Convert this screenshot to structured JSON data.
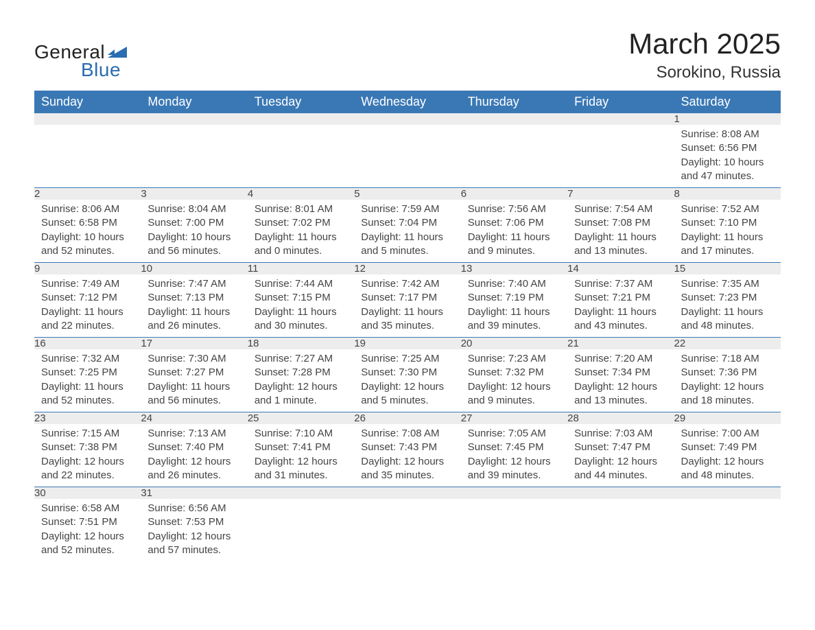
{
  "logo": {
    "text_general": "General",
    "text_blue": "Blue",
    "shape_color": "#2a6db0"
  },
  "header": {
    "month_title": "March 2025",
    "location": "Sorokino, Russia"
  },
  "style": {
    "header_bg": "#3a78b5",
    "header_text_color": "#ffffff",
    "daynum_bg": "#ededed",
    "body_text_color": "#444444",
    "row_border_color": "#3a78b5",
    "page_bg": "#ffffff",
    "month_title_fontsize": 42,
    "location_fontsize": 24,
    "weekday_fontsize": 18,
    "body_fontsize": 15
  },
  "weekdays": [
    "Sunday",
    "Monday",
    "Tuesday",
    "Wednesday",
    "Thursday",
    "Friday",
    "Saturday"
  ],
  "weeks": [
    [
      null,
      null,
      null,
      null,
      null,
      null,
      {
        "day": "1",
        "sunrise": "Sunrise: 8:08 AM",
        "sunset": "Sunset: 6:56 PM",
        "daylight": "Daylight: 10 hours and 47 minutes."
      }
    ],
    [
      {
        "day": "2",
        "sunrise": "Sunrise: 8:06 AM",
        "sunset": "Sunset: 6:58 PM",
        "daylight": "Daylight: 10 hours and 52 minutes."
      },
      {
        "day": "3",
        "sunrise": "Sunrise: 8:04 AM",
        "sunset": "Sunset: 7:00 PM",
        "daylight": "Daylight: 10 hours and 56 minutes."
      },
      {
        "day": "4",
        "sunrise": "Sunrise: 8:01 AM",
        "sunset": "Sunset: 7:02 PM",
        "daylight": "Daylight: 11 hours and 0 minutes."
      },
      {
        "day": "5",
        "sunrise": "Sunrise: 7:59 AM",
        "sunset": "Sunset: 7:04 PM",
        "daylight": "Daylight: 11 hours and 5 minutes."
      },
      {
        "day": "6",
        "sunrise": "Sunrise: 7:56 AM",
        "sunset": "Sunset: 7:06 PM",
        "daylight": "Daylight: 11 hours and 9 minutes."
      },
      {
        "day": "7",
        "sunrise": "Sunrise: 7:54 AM",
        "sunset": "Sunset: 7:08 PM",
        "daylight": "Daylight: 11 hours and 13 minutes."
      },
      {
        "day": "8",
        "sunrise": "Sunrise: 7:52 AM",
        "sunset": "Sunset: 7:10 PM",
        "daylight": "Daylight: 11 hours and 17 minutes."
      }
    ],
    [
      {
        "day": "9",
        "sunrise": "Sunrise: 7:49 AM",
        "sunset": "Sunset: 7:12 PM",
        "daylight": "Daylight: 11 hours and 22 minutes."
      },
      {
        "day": "10",
        "sunrise": "Sunrise: 7:47 AM",
        "sunset": "Sunset: 7:13 PM",
        "daylight": "Daylight: 11 hours and 26 minutes."
      },
      {
        "day": "11",
        "sunrise": "Sunrise: 7:44 AM",
        "sunset": "Sunset: 7:15 PM",
        "daylight": "Daylight: 11 hours and 30 minutes."
      },
      {
        "day": "12",
        "sunrise": "Sunrise: 7:42 AM",
        "sunset": "Sunset: 7:17 PM",
        "daylight": "Daylight: 11 hours and 35 minutes."
      },
      {
        "day": "13",
        "sunrise": "Sunrise: 7:40 AM",
        "sunset": "Sunset: 7:19 PM",
        "daylight": "Daylight: 11 hours and 39 minutes."
      },
      {
        "day": "14",
        "sunrise": "Sunrise: 7:37 AM",
        "sunset": "Sunset: 7:21 PM",
        "daylight": "Daylight: 11 hours and 43 minutes."
      },
      {
        "day": "15",
        "sunrise": "Sunrise: 7:35 AM",
        "sunset": "Sunset: 7:23 PM",
        "daylight": "Daylight: 11 hours and 48 minutes."
      }
    ],
    [
      {
        "day": "16",
        "sunrise": "Sunrise: 7:32 AM",
        "sunset": "Sunset: 7:25 PM",
        "daylight": "Daylight: 11 hours and 52 minutes."
      },
      {
        "day": "17",
        "sunrise": "Sunrise: 7:30 AM",
        "sunset": "Sunset: 7:27 PM",
        "daylight": "Daylight: 11 hours and 56 minutes."
      },
      {
        "day": "18",
        "sunrise": "Sunrise: 7:27 AM",
        "sunset": "Sunset: 7:28 PM",
        "daylight": "Daylight: 12 hours and 1 minute."
      },
      {
        "day": "19",
        "sunrise": "Sunrise: 7:25 AM",
        "sunset": "Sunset: 7:30 PM",
        "daylight": "Daylight: 12 hours and 5 minutes."
      },
      {
        "day": "20",
        "sunrise": "Sunrise: 7:23 AM",
        "sunset": "Sunset: 7:32 PM",
        "daylight": "Daylight: 12 hours and 9 minutes."
      },
      {
        "day": "21",
        "sunrise": "Sunrise: 7:20 AM",
        "sunset": "Sunset: 7:34 PM",
        "daylight": "Daylight: 12 hours and 13 minutes."
      },
      {
        "day": "22",
        "sunrise": "Sunrise: 7:18 AM",
        "sunset": "Sunset: 7:36 PM",
        "daylight": "Daylight: 12 hours and 18 minutes."
      }
    ],
    [
      {
        "day": "23",
        "sunrise": "Sunrise: 7:15 AM",
        "sunset": "Sunset: 7:38 PM",
        "daylight": "Daylight: 12 hours and 22 minutes."
      },
      {
        "day": "24",
        "sunrise": "Sunrise: 7:13 AM",
        "sunset": "Sunset: 7:40 PM",
        "daylight": "Daylight: 12 hours and 26 minutes."
      },
      {
        "day": "25",
        "sunrise": "Sunrise: 7:10 AM",
        "sunset": "Sunset: 7:41 PM",
        "daylight": "Daylight: 12 hours and 31 minutes."
      },
      {
        "day": "26",
        "sunrise": "Sunrise: 7:08 AM",
        "sunset": "Sunset: 7:43 PM",
        "daylight": "Daylight: 12 hours and 35 minutes."
      },
      {
        "day": "27",
        "sunrise": "Sunrise: 7:05 AM",
        "sunset": "Sunset: 7:45 PM",
        "daylight": "Daylight: 12 hours and 39 minutes."
      },
      {
        "day": "28",
        "sunrise": "Sunrise: 7:03 AM",
        "sunset": "Sunset: 7:47 PM",
        "daylight": "Daylight: 12 hours and 44 minutes."
      },
      {
        "day": "29",
        "sunrise": "Sunrise: 7:00 AM",
        "sunset": "Sunset: 7:49 PM",
        "daylight": "Daylight: 12 hours and 48 minutes."
      }
    ],
    [
      {
        "day": "30",
        "sunrise": "Sunrise: 6:58 AM",
        "sunset": "Sunset: 7:51 PM",
        "daylight": "Daylight: 12 hours and 52 minutes."
      },
      {
        "day": "31",
        "sunrise": "Sunrise: 6:56 AM",
        "sunset": "Sunset: 7:53 PM",
        "daylight": "Daylight: 12 hours and 57 minutes."
      },
      null,
      null,
      null,
      null,
      null
    ]
  ]
}
